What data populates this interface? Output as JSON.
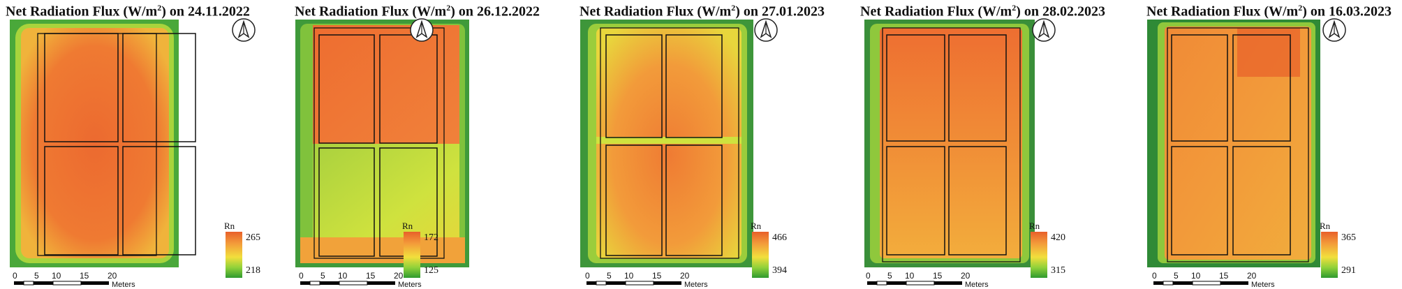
{
  "panels": [
    {
      "title_prefix": "Net Radiation Flux (W/m",
      "title_suffix": ") on 24.11.2022",
      "title_sup": "2",
      "legend_title": "Rn",
      "legend_max": "265",
      "legend_min": "218",
      "scale_ticks": [
        "0",
        "5",
        "10",
        "15",
        "20"
      ],
      "scale_unit": "Meters"
    },
    {
      "title_prefix": "Net Radiation Flux (W/m",
      "title_suffix": ") on 26.12.2022",
      "title_sup": "2",
      "legend_title": "Rn",
      "legend_max": "172",
      "legend_min": "125",
      "scale_ticks": [
        "0",
        "5",
        "10",
        "15",
        "20"
      ],
      "scale_unit": "Meters"
    },
    {
      "title_prefix": "Net Radiation Flux (W/m",
      "title_suffix": ") on 27.01.2023",
      "title_sup": "2",
      "legend_title": "Rn",
      "legend_max": "466",
      "legend_min": "394",
      "scale_ticks": [
        "0",
        "5",
        "10",
        "15",
        "20"
      ],
      "scale_unit": "Meters"
    },
    {
      "title_prefix": "Net Radiation Flux (W/m",
      "title_suffix": ") on 28.02.2023",
      "title_sup": "2",
      "legend_title": "Rn",
      "legend_max": "420",
      "legend_min": "315",
      "scale_ticks": [
        "0",
        "5",
        "10",
        "15",
        "20"
      ],
      "scale_unit": "Meters"
    },
    {
      "title_prefix": "Net Radiation Flux (W/m",
      "title_suffix": ") on 16.03.2023",
      "title_sup": "2",
      "legend_title": "Rn",
      "legend_max": "365",
      "legend_min": "291",
      "scale_ticks": [
        "0",
        "5",
        "10",
        "15",
        "20"
      ],
      "scale_unit": "Meters"
    }
  ],
  "colors": {
    "high": "#e8602a",
    "mid_high": "#f39a3a",
    "mid": "#f2df3c",
    "mid_low": "#8fd13a",
    "low": "#2f9a2f"
  },
  "icons": {
    "north_arrow": "north-arrow-icon"
  }
}
